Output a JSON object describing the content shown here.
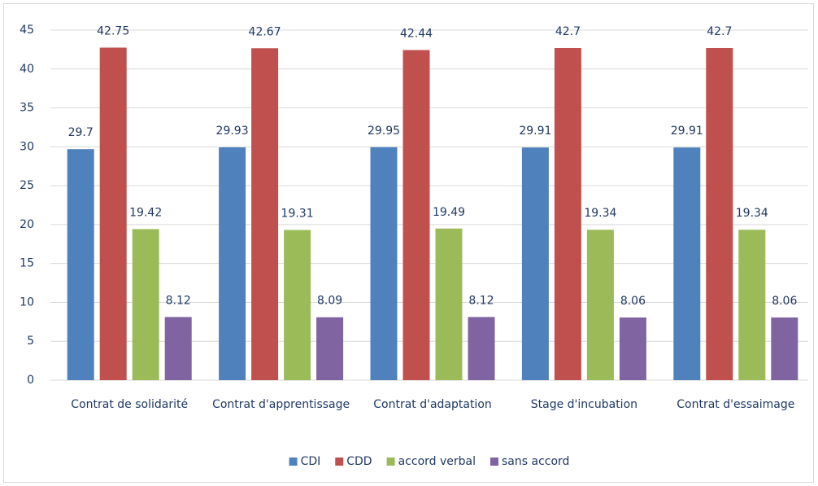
{
  "chart_data": {
    "type": "bar",
    "categories": [
      "Contrat de solidarité",
      "Contrat d'apprentissage",
      "Contrat d'adaptation",
      "Stage d'incubation",
      "Contrat d'essaimage"
    ],
    "series": [
      {
        "name": "CDI",
        "color": "#4f81bd",
        "values": [
          29.7,
          29.93,
          29.95,
          29.91,
          29.91
        ]
      },
      {
        "name": "CDD",
        "color": "#c0504d",
        "values": [
          42.75,
          42.67,
          42.44,
          42.7,
          42.7
        ]
      },
      {
        "name": "accord verbal",
        "color": "#9bbb59",
        "values": [
          19.42,
          19.31,
          19.49,
          19.34,
          19.34
        ]
      },
      {
        "name": "sans accord",
        "color": "#8064a2",
        "values": [
          8.12,
          8.09,
          8.12,
          8.06,
          8.06
        ]
      }
    ],
    "ylim": [
      0,
      45
    ],
    "yticks": [
      0,
      5,
      10,
      15,
      20,
      25,
      30,
      35,
      40,
      45
    ],
    "grid": true,
    "legend": "bottom"
  }
}
